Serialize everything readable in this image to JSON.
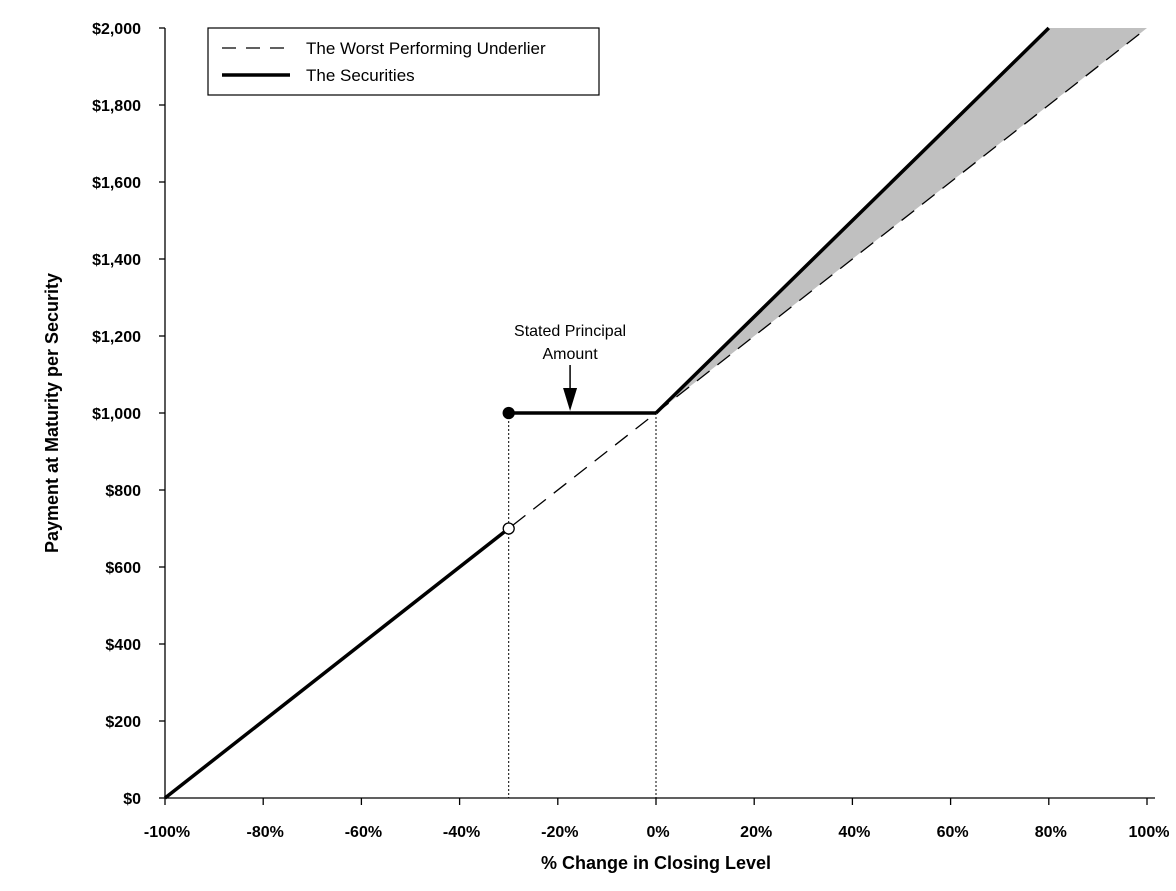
{
  "chart_data": {
    "type": "line",
    "title": "",
    "xlabel": "% Change in Closing Level",
    "ylabel": "Payment at Maturity per Security",
    "xlim": [
      -100,
      100
    ],
    "ylim": [
      0,
      2000
    ],
    "x_ticks": [
      -100,
      -80,
      -60,
      -40,
      -20,
      0,
      20,
      40,
      60,
      80,
      100
    ],
    "x_tick_labels": [
      "-100%",
      "-80%",
      "-60%",
      "-40%",
      "-20%",
      "0%",
      "20%",
      "40%",
      "60%",
      "80%",
      "100%"
    ],
    "y_ticks": [
      0,
      200,
      400,
      600,
      800,
      1000,
      1200,
      1400,
      1600,
      1800,
      2000
    ],
    "y_tick_labels": [
      "$0",
      "$200",
      "$400",
      "$600",
      "$800",
      "$1,000",
      "$1,200",
      "$1,400",
      "$1,600",
      "$1,800",
      "$2,000"
    ],
    "grid": false,
    "legend_position": "top-left",
    "series": [
      {
        "name": "The Worst Performing Underlier",
        "style": "dashed",
        "x": [
          -100,
          100
        ],
        "y": [
          0,
          2000
        ]
      },
      {
        "name": "The Securities",
        "style": "solid-thick",
        "segments": [
          {
            "x": [
              -100,
              -30
            ],
            "y": [
              0,
              700
            ]
          },
          {
            "x": [
              -30,
              0
            ],
            "y": [
              1000,
              1000
            ]
          },
          {
            "x": [
              0,
              80
            ],
            "y": [
              1000,
              2000
            ]
          }
        ]
      }
    ],
    "markers": [
      {
        "x": -30,
        "y": 1000,
        "fill": "filled"
      },
      {
        "x": -30,
        "y": 700,
        "fill": "open"
      }
    ],
    "reference_lines_x": [
      -30,
      0
    ],
    "shaded_region": {
      "x": [
        0,
        80,
        100
      ],
      "upper": [
        1000,
        2000,
        2000
      ],
      "lower": [
        1000,
        1800,
        2000
      ],
      "color": "#c0c0c0"
    },
    "annotation": {
      "line1": "Stated Principal",
      "line2": "Amount",
      "arrow_x": -17.5,
      "arrow_y": 1000
    }
  }
}
